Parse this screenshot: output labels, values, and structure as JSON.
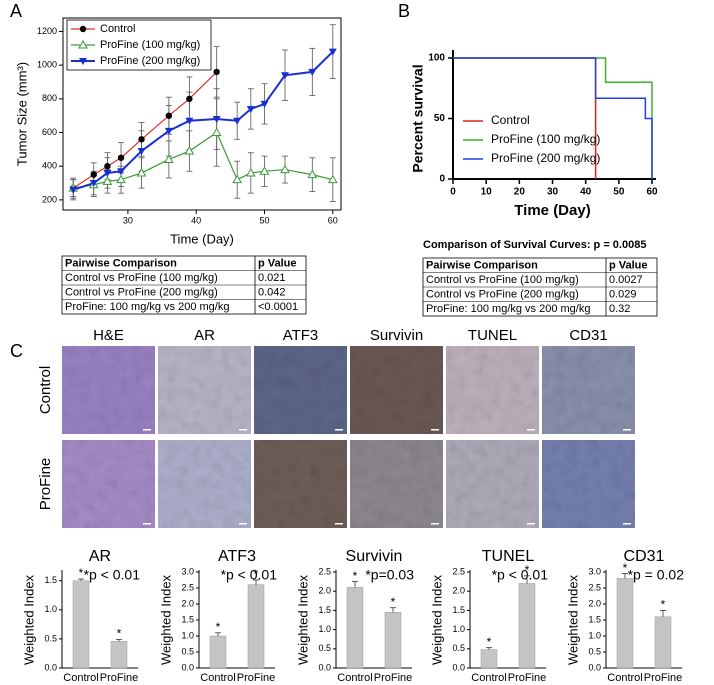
{
  "panel_labels": [
    "A",
    "B",
    "C"
  ],
  "chart_data": [
    {
      "type": "line",
      "x_label": "Time (Day)",
      "y_label": "Tumor Size (mm³)",
      "xlim": [
        20.5,
        61.2
      ],
      "xticks": [
        30,
        40,
        50,
        60
      ],
      "ylim": [
        140,
        1280
      ],
      "yticks": [
        200,
        400,
        600,
        800,
        1000,
        1200
      ],
      "legend": "upper left",
      "series": [
        {
          "name": "Control",
          "color": "#e0302a",
          "marker": "circle",
          "marker_color": "#000000",
          "x": [
            22,
            25,
            27,
            29,
            32,
            36,
            39,
            43
          ],
          "values": [
            270,
            350,
            400,
            450,
            560,
            700,
            800,
            960
          ],
          "errors": [
            60,
            70,
            80,
            90,
            100,
            110,
            130,
            150
          ]
        },
        {
          "name": "ProFine (100 mg/kg)",
          "color": "#3a9a3a",
          "marker": "triangle-up-open",
          "marker_color": "#3a9a3a",
          "x": [
            22,
            25,
            27,
            29,
            32,
            36,
            39,
            43,
            46,
            48,
            50,
            53,
            57,
            60
          ],
          "values": [
            270,
            290,
            310,
            320,
            360,
            440,
            490,
            600,
            320,
            360,
            370,
            380,
            350,
            320
          ],
          "errors": [
            50,
            70,
            70,
            80,
            90,
            110,
            120,
            200,
            110,
            120,
            90,
            80,
            100,
            130
          ]
        },
        {
          "name": "ProFine (200 mg/kg)",
          "color": "#1a2fd0",
          "marker": "triangle-down",
          "marker_color": "#1a2fd0",
          "x": [
            22,
            25,
            27,
            29,
            32,
            36,
            39,
            43,
            46,
            48,
            50,
            53,
            57,
            60
          ],
          "values": [
            260,
            300,
            360,
            370,
            490,
            610,
            670,
            680,
            670,
            740,
            770,
            940,
            960,
            1080
          ],
          "errors": [
            60,
            70,
            90,
            90,
            120,
            150,
            170,
            180,
            110,
            120,
            120,
            150,
            140,
            160
          ]
        }
      ]
    },
    {
      "type": "step",
      "x_label": "Time (Day)",
      "y_label": "Percent survival",
      "xlim": [
        0,
        60
      ],
      "xticks": [
        0,
        10,
        20,
        30,
        40,
        50,
        60
      ],
      "ylim": [
        0,
        100
      ],
      "yticks": [
        0,
        50,
        100
      ],
      "legend": "lower left",
      "series": [
        {
          "name": "Control",
          "color": "#e0201a",
          "x": [
            0,
            43
          ],
          "values": [
            100,
            0
          ]
        },
        {
          "name": "ProFine (100 mg/kg)",
          "color": "#40b030",
          "x": [
            0,
            46,
            60
          ],
          "values": [
            100,
            80,
            0
          ]
        },
        {
          "name": "ProFine (200 mg/kg)",
          "color": "#2040e0",
          "x": [
            0,
            43,
            58,
            60
          ],
          "values": [
            100,
            66.7,
            50,
            0
          ]
        }
      ]
    },
    {
      "type": "bar",
      "title": "AR",
      "y_label": "Weighted Index",
      "annotation": "*p < 0.01",
      "categories": [
        "Control",
        "ProFine"
      ],
      "values": [
        1.5,
        0.46
      ],
      "errors": [
        0.03,
        0.03
      ],
      "markers": [
        "*",
        "*"
      ],
      "color": "#c4c4c4",
      "ylim": [
        0,
        1.65
      ],
      "yticks": [
        {
          "value": 0,
          "label": "0.0"
        },
        0.5,
        {
          "value": 1,
          "label": "1.0"
        },
        1.5
      ]
    },
    {
      "type": "bar",
      "title": "ATF3",
      "y_label": "Weighted Index",
      "annotation": "*p < 0.01",
      "categories": [
        "Control",
        "ProFine"
      ],
      "values": [
        1.0,
        2.6
      ],
      "errors": [
        0.1,
        0.15
      ],
      "markers": [
        "*",
        "*"
      ],
      "color": "#c4c4c4",
      "ylim": [
        0,
        3
      ],
      "yticks": [
        {
          "value": 0,
          "label": "0.0"
        },
        0.5,
        {
          "value": 1,
          "label": "1.0"
        },
        1.5,
        {
          "value": 2,
          "label": "2.0"
        },
        2.5,
        {
          "value": 3,
          "label": "3.0"
        }
      ]
    },
    {
      "type": "bar",
      "title": "Survivin",
      "y_label": "Weighted Index",
      "annotation": "*p=0.03",
      "categories": [
        "Control",
        "ProFine"
      ],
      "values": [
        2.1,
        1.45
      ],
      "errors": [
        0.15,
        0.12
      ],
      "markers": [
        "*",
        "*"
      ],
      "color": "#c4c4c4",
      "ylim": [
        0,
        2.5
      ],
      "yticks": [
        {
          "value": 0,
          "label": "0.0"
        },
        0.5,
        {
          "value": 1,
          "label": "1.0"
        },
        1.5,
        {
          "value": 2,
          "label": "2.0"
        },
        2.5
      ]
    },
    {
      "type": "bar",
      "title": "TUNEL",
      "y_label": "Weighted Index",
      "annotation": "*p < 0.01",
      "categories": [
        "Control",
        "ProFine"
      ],
      "values": [
        0.48,
        2.2
      ],
      "errors": [
        0.05,
        0.2
      ],
      "markers": [
        "*",
        "*"
      ],
      "color": "#c4c4c4",
      "ylim": [
        0,
        2.5
      ],
      "yticks": [
        {
          "value": 0,
          "label": "0.0"
        },
        0.5,
        {
          "value": 1,
          "label": "1.0"
        },
        1.5,
        {
          "value": 2,
          "label": "2.0"
        },
        2.5
      ]
    },
    {
      "type": "bar",
      "title": "CD31",
      "y_label": "Weighted Index",
      "annotation": "*p = 0.02",
      "categories": [
        "Control",
        "ProFine"
      ],
      "values": [
        2.8,
        1.6
      ],
      "errors": [
        0.15,
        0.2
      ],
      "markers": [
        "*",
        "*"
      ],
      "color": "#c4c4c4",
      "ylim": [
        0,
        3
      ],
      "yticks": [
        {
          "value": 0,
          "label": "0.0"
        },
        0.5,
        {
          "value": 1,
          "label": "1.0"
        },
        1.5,
        {
          "value": 2,
          "label": "2.0"
        },
        2.5,
        {
          "value": 3,
          "label": "3.0"
        }
      ]
    }
  ],
  "tables": [
    {
      "header": [
        "Pairwise Comparison",
        "p Value"
      ],
      "rows": [
        [
          "Control vs ProFine (100 mg/kg)",
          "0.021"
        ],
        [
          "Control vs ProFine (200 mg/kg)",
          "0.042"
        ],
        [
          "ProFine: 100 mg/kg vs 200 mg/kg",
          "<0.0001"
        ]
      ]
    },
    {
      "title": "Comparison of Survival Curves: p = 0.0085",
      "header": [
        "Pairwise Comparison",
        "p Value"
      ],
      "rows": [
        [
          "Control vs ProFine (100 mg/kg)",
          "0.0027"
        ],
        [
          "Control vs ProFine (200 mg/kg)",
          "0.029"
        ],
        [
          "ProFine: 100 mg/kg vs 200 mg/kg",
          "0.32"
        ]
      ]
    }
  ],
  "image_grid": {
    "columns": [
      "H&E",
      "AR",
      "ATF3",
      "Survivin",
      "TUNEL",
      "CD31"
    ],
    "rows": [
      "Control",
      "ProFine"
    ]
  }
}
